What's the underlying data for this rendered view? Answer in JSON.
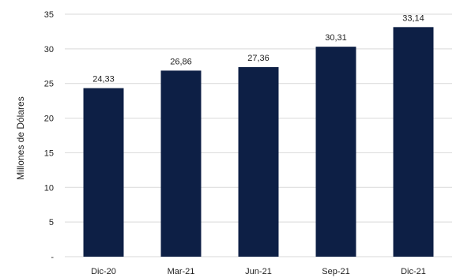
{
  "chart_data": {
    "type": "bar",
    "categories": [
      "Dic-20",
      "Mar-21",
      "Jun-21",
      "Sep-21",
      "Dic-21"
    ],
    "values": [
      24.33,
      26.86,
      27.36,
      30.31,
      33.14
    ],
    "value_labels": [
      "24,33",
      "26,86",
      "27,36",
      "30,31",
      "33,14"
    ],
    "title": "",
    "xlabel": "",
    "ylabel": "Millones de Dólares",
    "ylim": [
      0,
      35
    ],
    "y_ticks": [
      0,
      5,
      10,
      15,
      20,
      25,
      30,
      35
    ],
    "y_tick_labels": [
      "-",
      "5",
      "10",
      "15",
      "20",
      "25",
      "30",
      "35"
    ],
    "grid": true,
    "legend": "none",
    "bar_color": "#0d1f45",
    "grid_color": "#d9d9d9"
  }
}
